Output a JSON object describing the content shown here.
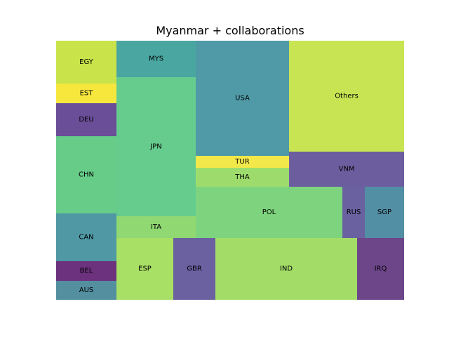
{
  "chart_data": {
    "type": "treemap",
    "title": "Myanmar + collaborations",
    "cells": [
      {
        "label": "EGY",
        "value": 6.7,
        "color": "#c9e34a"
      },
      {
        "label": "EST",
        "value": 3.3,
        "color": "#f7e73d"
      },
      {
        "label": "DEU",
        "value": 5.7,
        "color": "#6a4e98"
      },
      {
        "label": "CHN",
        "value": 13.3,
        "color": "#66cc88"
      },
      {
        "label": "CAN",
        "value": 8.0,
        "color": "#4f98a4"
      },
      {
        "label": "BEL",
        "value": 3.3,
        "color": "#6c327e"
      },
      {
        "label": "AUS",
        "value": 3.3,
        "color": "#538f9f"
      },
      {
        "label": "MYS",
        "value": 8.0,
        "color": "#4aa6a0"
      },
      {
        "label": "JPN",
        "value": 30.0,
        "color": "#66cc8e"
      },
      {
        "label": "ITA",
        "value": 4.7,
        "color": "#8fd872"
      },
      {
        "label": "USA",
        "value": 29.3,
        "color": "#4f9aa6"
      },
      {
        "label": "TUR",
        "value": 3.0,
        "color": "#f2e84a"
      },
      {
        "label": "THA",
        "value": 4.7,
        "color": "#9ddc6c"
      },
      {
        "label": "Others",
        "value": 35.3,
        "color": "#c9e453"
      },
      {
        "label": "VNM",
        "value": 11.0,
        "color": "#6c5e9e"
      },
      {
        "label": "POL",
        "value": 20.7,
        "color": "#7ed47e"
      },
      {
        "label": "RUS",
        "value": 3.0,
        "color": "#6a62a0"
      },
      {
        "label": "SGP",
        "value": 5.0,
        "color": "#528ea4"
      },
      {
        "label": "ESP",
        "value": 10.0,
        "color": "#a8df65"
      },
      {
        "label": "GBR",
        "value": 6.7,
        "color": "#6b60a0"
      },
      {
        "label": "IND",
        "value": 22.3,
        "color": "#a3dd68"
      },
      {
        "label": "IRQ",
        "value": 7.3,
        "color": "#6d468a"
      }
    ]
  }
}
